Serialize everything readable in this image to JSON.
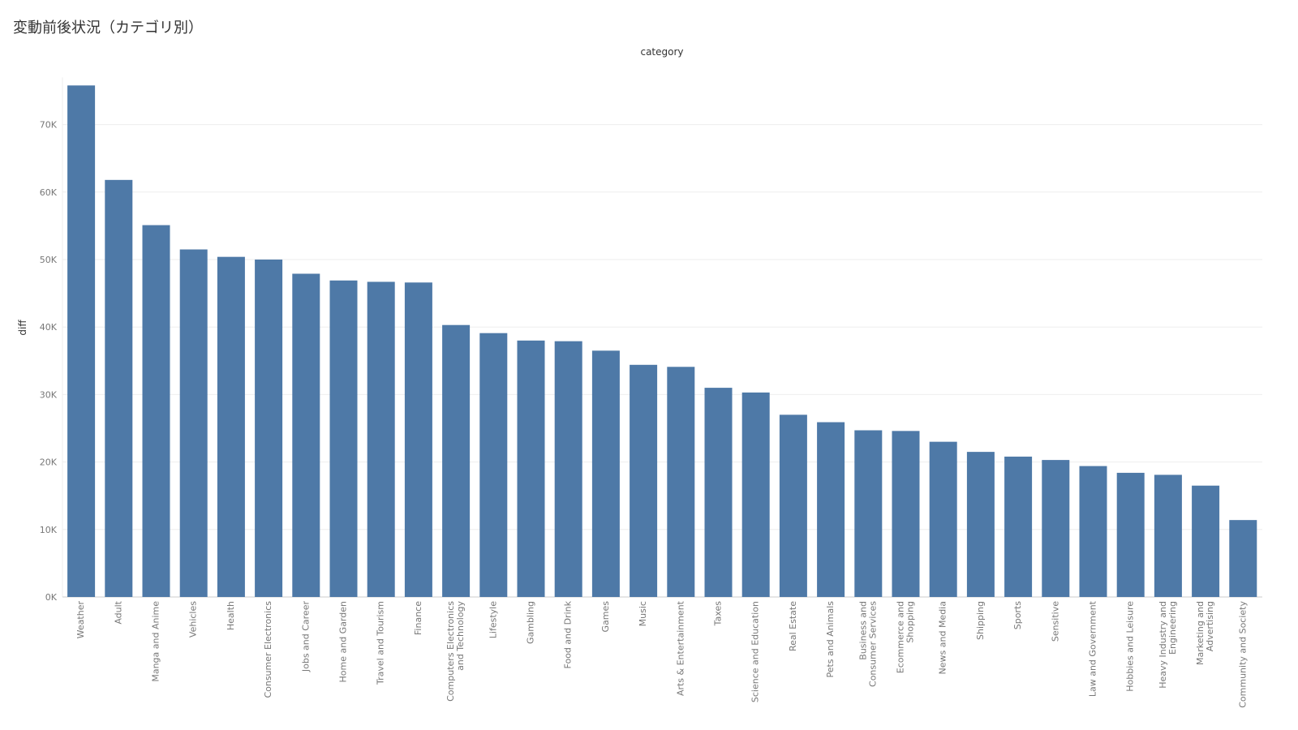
{
  "title": "変動前後状況（カテゴリ別）",
  "colors": {
    "bar": "#4e79a7",
    "grid": "#eeeeee",
    "axis": "#cccccc",
    "text": "#777777"
  },
  "chart_data": {
    "type": "bar",
    "title": "変動前後状況（カテゴリ別）",
    "xlabel": "category",
    "ylabel": "diff",
    "ylim": [
      0,
      77000
    ],
    "yticks": [
      0,
      10000,
      20000,
      30000,
      40000,
      50000,
      60000,
      70000
    ],
    "ytick_labels": [
      "0K",
      "10K",
      "20K",
      "30K",
      "40K",
      "50K",
      "60K",
      "70K"
    ],
    "grid": true,
    "categories": [
      [
        "Weather"
      ],
      [
        "Adult"
      ],
      [
        "Manga and Anime"
      ],
      [
        "Vehicles"
      ],
      [
        "Health"
      ],
      [
        "Consumer Electronics"
      ],
      [
        "Jobs and Career"
      ],
      [
        "Home and Garden"
      ],
      [
        "Travel and Tourism"
      ],
      [
        "Finance"
      ],
      [
        "Computers Electronics",
        "and Technology"
      ],
      [
        "Lifestyle"
      ],
      [
        "Gambling"
      ],
      [
        "Food and Drink"
      ],
      [
        "Games"
      ],
      [
        "Music"
      ],
      [
        "Arts & Entertainment"
      ],
      [
        "Taxes"
      ],
      [
        "Science and Education"
      ],
      [
        "Real Estate"
      ],
      [
        "Pets and Animals"
      ],
      [
        "Business and",
        "Consumer Services"
      ],
      [
        "Ecommerce and",
        "Shopping"
      ],
      [
        "News and Media"
      ],
      [
        "Shipping"
      ],
      [
        "Sports"
      ],
      [
        "Sensitive"
      ],
      [
        "Law and Government"
      ],
      [
        "Hobbies and Leisure"
      ],
      [
        "Heavy Industry and",
        "Engineering"
      ],
      [
        "Marketing and",
        "Advertising"
      ],
      [
        "Community and Society"
      ]
    ],
    "values": [
      75800,
      61800,
      55100,
      51500,
      50400,
      50000,
      47900,
      46900,
      46700,
      46600,
      40300,
      39100,
      38000,
      37900,
      36500,
      34400,
      34100,
      31000,
      30300,
      27000,
      25900,
      24700,
      24600,
      23000,
      21500,
      20800,
      20300,
      19400,
      18400,
      18100,
      16500,
      11400
    ]
  }
}
